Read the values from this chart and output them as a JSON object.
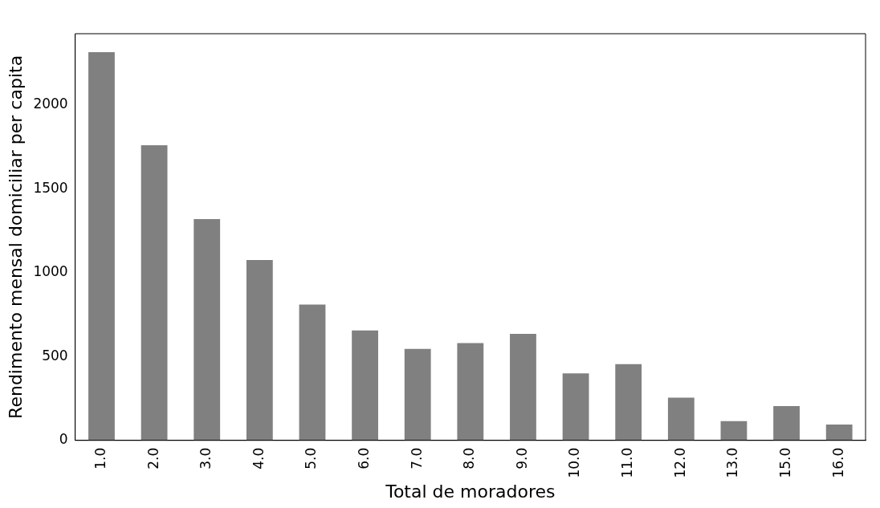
{
  "chart_data": {
    "type": "bar",
    "xlabel": "Total de moradores",
    "ylabel": "Rendimento mensal domiciliar per capita",
    "categories": [
      "1.0",
      "2.0",
      "3.0",
      "4.0",
      "5.0",
      "6.0",
      "7.0",
      "8.0",
      "9.0",
      "10.0",
      "11.0",
      "12.0",
      "13.0",
      "15.0",
      "16.0"
    ],
    "values": [
      2315,
      1760,
      1320,
      1075,
      810,
      655,
      545,
      580,
      635,
      400,
      455,
      255,
      115,
      205,
      95
    ],
    "color": "#808080",
    "ylim": [
      0,
      2425
    ],
    "yticks": [
      0,
      500,
      1000,
      1500,
      2000
    ],
    "grid": false,
    "legend": false
  }
}
